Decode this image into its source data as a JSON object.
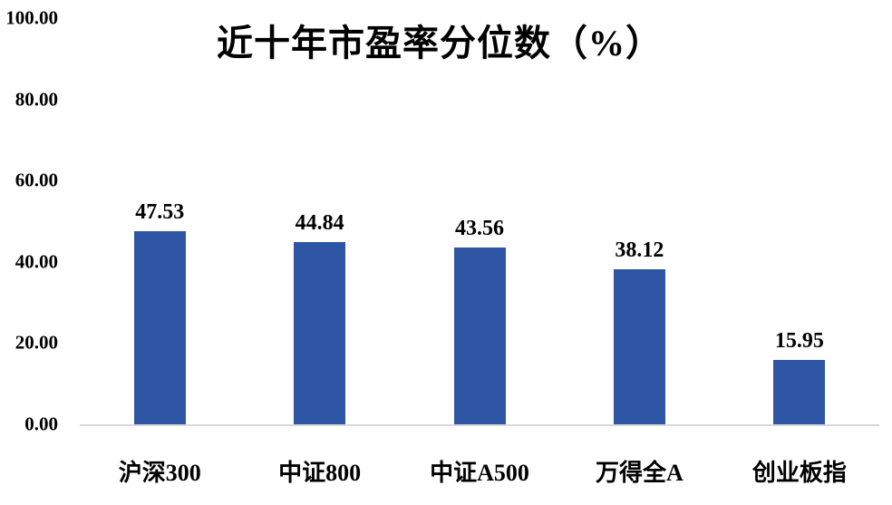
{
  "title": "近十年市盈率分位数（%）",
  "colors": {
    "bar": "#2E56A5",
    "axis_line": "#D9D9D9",
    "text": "#000000",
    "background": "#FFFFFF"
  },
  "chart_data": {
    "type": "bar",
    "title": "近十年市盈率分位数（%）",
    "categories": [
      "沪深300",
      "中证800",
      "中证A500",
      "万得全A",
      "创业板指"
    ],
    "values": [
      47.53,
      44.84,
      43.56,
      38.12,
      15.95
    ],
    "value_labels": [
      "47.53",
      "44.84",
      "43.56",
      "38.12",
      "15.95"
    ],
    "xlabel": "",
    "ylabel": "",
    "ylim": [
      0,
      100
    ],
    "ytick_labels": [
      "100.00",
      "80.00",
      "60.00",
      "40.00",
      "20.00",
      "0.00"
    ],
    "ytick_values": [
      100,
      80,
      60,
      40,
      20,
      0
    ],
    "grid": false,
    "legend": "none",
    "bar_color": "#2E56A5"
  }
}
